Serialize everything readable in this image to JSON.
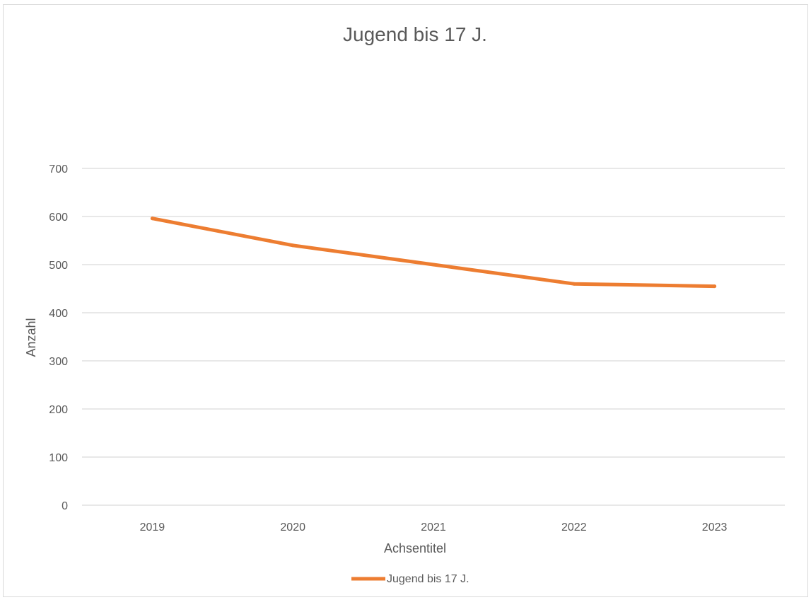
{
  "chart_data": {
    "type": "line",
    "title": "Jugend bis 17 J.",
    "xlabel": "Achsentitel",
    "ylabel": "Anzahl",
    "categories": [
      "2019",
      "2020",
      "2021",
      "2022",
      "2023"
    ],
    "series": [
      {
        "name": "Jugend bis 17 J.",
        "values": [
          596,
          540,
          500,
          460,
          455
        ],
        "color": "#ed7d31"
      }
    ],
    "ylim": [
      0,
      700
    ],
    "yticks": [
      "0",
      "100",
      "200",
      "300",
      "400",
      "500",
      "600",
      "700"
    ],
    "grid": true,
    "legend_position": "bottom"
  }
}
